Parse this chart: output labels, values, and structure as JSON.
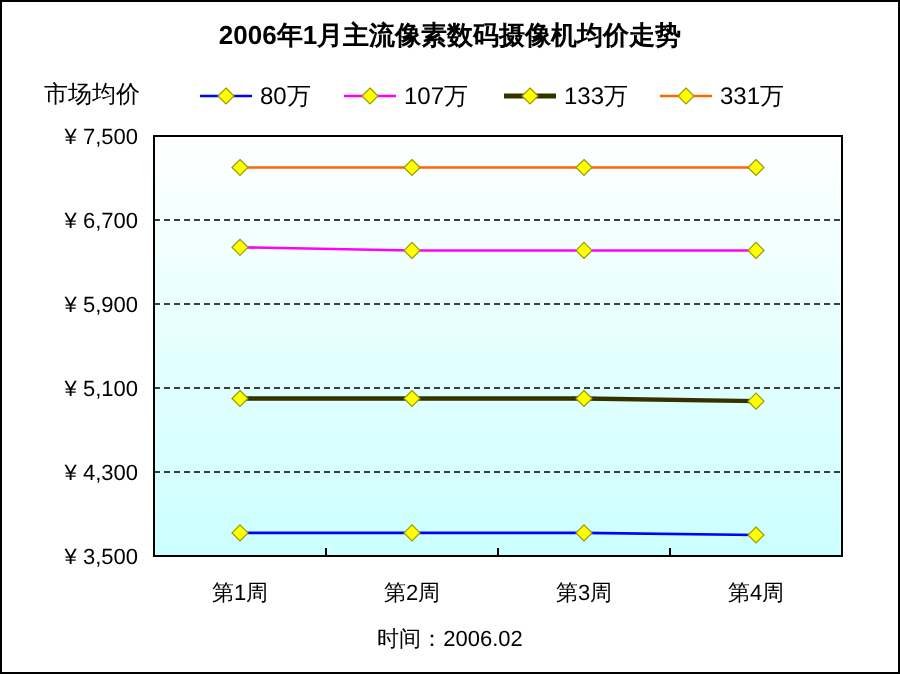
{
  "chart_data": {
    "type": "line",
    "title": "2006年1月主流像素数码摄像机均价走势",
    "ylabel": "市场均价",
    "categories": [
      "第1周",
      "第2周",
      "第3周",
      "第4周"
    ],
    "series": [
      {
        "name": "80万",
        "color": "#0000ff",
        "values": [
          3720,
          3720,
          3720,
          3700
        ]
      },
      {
        "name": "107万",
        "color": "#ff00ff",
        "values": [
          6440,
          6410,
          6410,
          6410
        ]
      },
      {
        "name": "133万",
        "color": "#333300",
        "values": [
          5000,
          5000,
          5000,
          4975
        ]
      },
      {
        "name": "331万",
        "color": "#ff6600",
        "values": [
          7200,
          7200,
          7200,
          7200
        ]
      }
    ],
    "ylim": [
      3500,
      7500
    ],
    "yticks": [
      {
        "value": 3500,
        "label": "¥ 3,500"
      },
      {
        "value": 4300,
        "label": "¥ 4,300"
      },
      {
        "value": 5100,
        "label": "¥ 5,100"
      },
      {
        "value": 5900,
        "label": "¥ 5,900"
      },
      {
        "value": 6700,
        "label": "¥ 6,700"
      },
      {
        "value": 7500,
        "label": "¥ 7,500"
      }
    ],
    "grid": "y",
    "legend": "top",
    "marker": "diamond",
    "line_style": "solid",
    "annotations": [
      "时间：2006.02"
    ]
  }
}
